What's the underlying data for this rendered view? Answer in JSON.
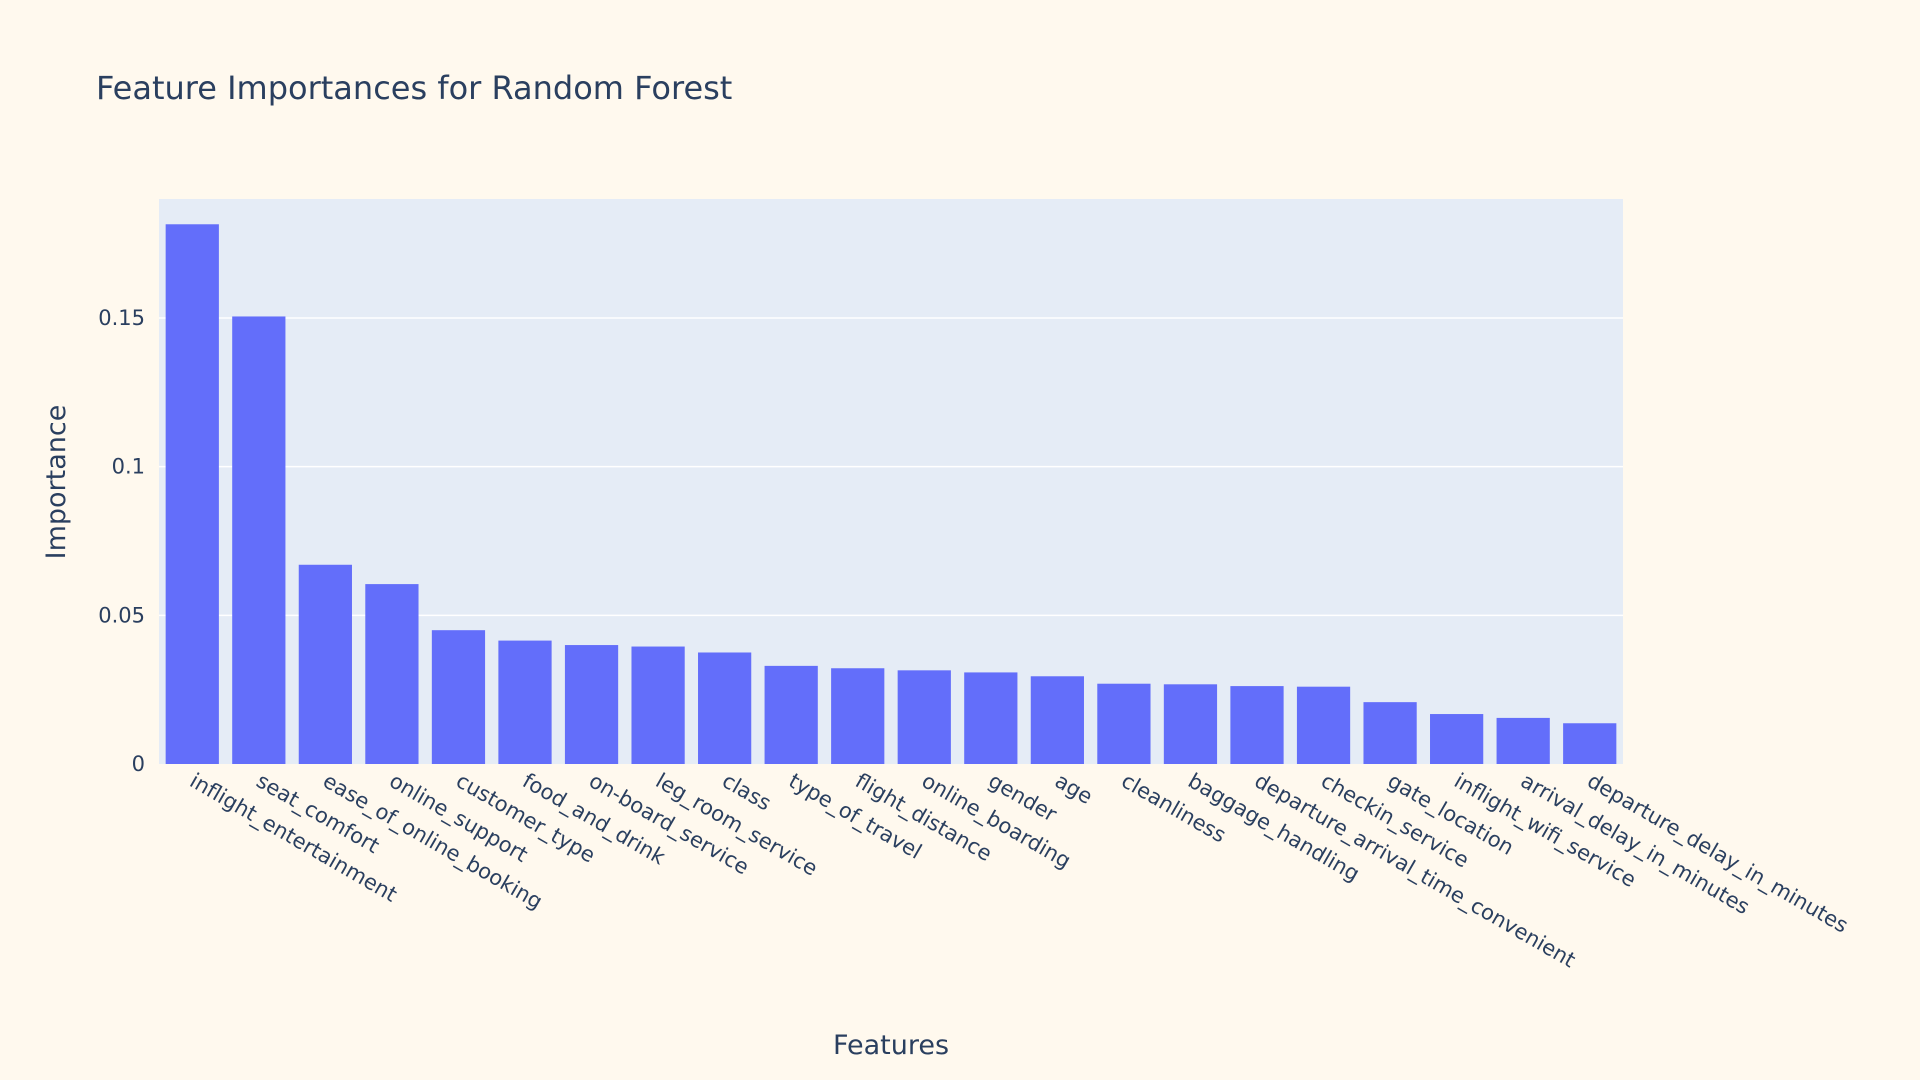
{
  "colors": {
    "page_background": "#fff9ee",
    "plot_background": "#e5ecf6",
    "bar": "#636efa",
    "gridline": "#ffffff",
    "text": "#2a3f5f"
  },
  "chart_data": {
    "type": "bar",
    "title": "Feature Importances for Random Forest",
    "xlabel": "Features",
    "ylabel": "Importance",
    "ylim": [
      0,
      0.19
    ],
    "yticks": [
      0,
      0.05,
      0.1,
      0.15
    ],
    "ytick_labels": [
      "0",
      "0.05",
      "0.1",
      "0.15"
    ],
    "grid": true,
    "categories": [
      "inflight_entertainment",
      "seat_comfort",
      "ease_of_online_booking",
      "online_support",
      "customer_type",
      "food_and_drink",
      "on-board_service",
      "leg_room_service",
      "class",
      "type_of_travel",
      "flight_distance",
      "online_boarding",
      "gender",
      "age",
      "cleanliness",
      "baggage_handling",
      "departure_arrival_time_convenient",
      "checkin_service",
      "gate_location",
      "inflight_wifi_service",
      "arrival_delay_in_minutes",
      "departure_delay_in_minutes"
    ],
    "values": [
      0.1815,
      0.1505,
      0.067,
      0.0605,
      0.045,
      0.0415,
      0.04,
      0.0395,
      0.0375,
      0.033,
      0.0322,
      0.0315,
      0.0308,
      0.0295,
      0.027,
      0.0268,
      0.0262,
      0.026,
      0.0208,
      0.0168,
      0.0155,
      0.0137
    ]
  }
}
